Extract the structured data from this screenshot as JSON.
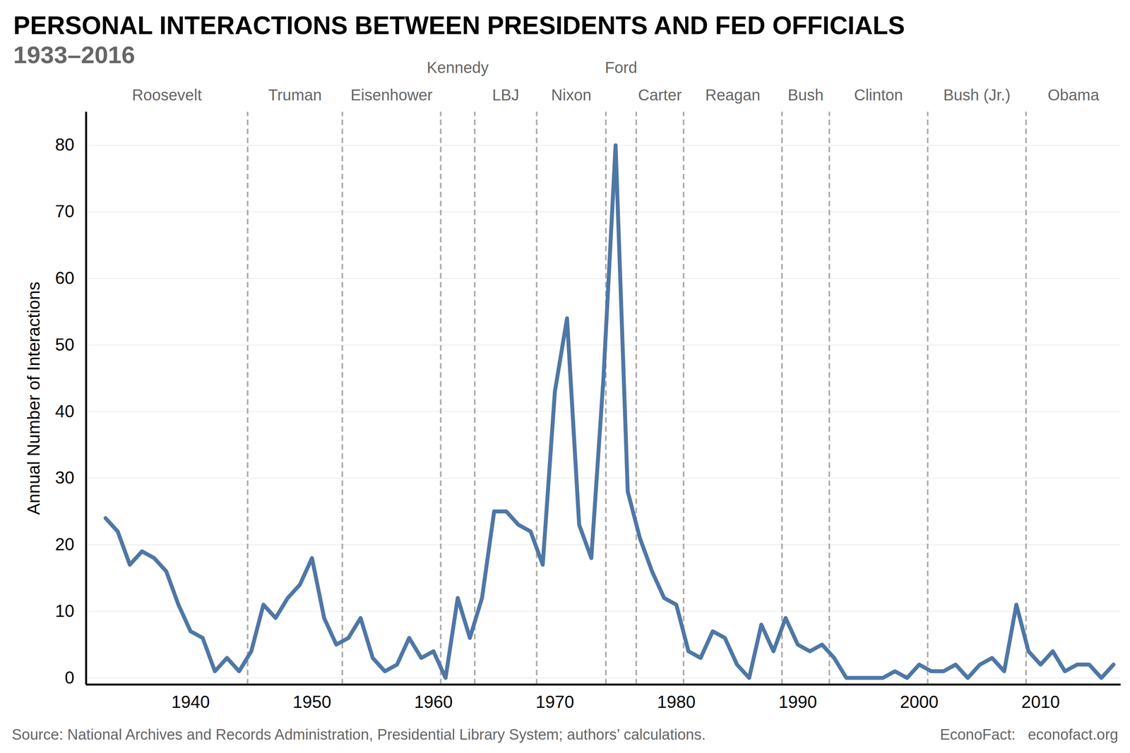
{
  "chart_data": {
    "type": "line",
    "title": "PERSONAL INTERACTIONS BETWEEN PRESIDENTS AND FED OFFICIALS",
    "subtitle": "1933–2016",
    "y_label": "Annual Number of Interactions",
    "source": "Source: National Archives and Records Administration, Presidential Library System; authors’ calculations.",
    "credit": "EconoFact:   econofact.org",
    "color": "#4e77a6",
    "x": [
      1933,
      1934,
      1935,
      1936,
      1937,
      1938,
      1939,
      1940,
      1941,
      1942,
      1943,
      1944,
      1945,
      1946,
      1947,
      1948,
      1949,
      1950,
      1951,
      1952,
      1953,
      1954,
      1955,
      1956,
      1957,
      1958,
      1959,
      1960,
      1961,
      1962,
      1963,
      1964,
      1965,
      1966,
      1967,
      1968,
      1969,
      1970,
      1971,
      1972,
      1973,
      1974,
      1975,
      1976,
      1977,
      1978,
      1979,
      1980,
      1981,
      1982,
      1983,
      1984,
      1985,
      1986,
      1987,
      1988,
      1989,
      1990,
      1991,
      1992,
      1993,
      1994,
      1995,
      1996,
      1997,
      1998,
      1999,
      2000,
      2001,
      2002,
      2003,
      2004,
      2005,
      2006,
      2007,
      2008,
      2009,
      2010,
      2011,
      2012,
      2013,
      2014,
      2015,
      2016
    ],
    "values": [
      24,
      22,
      17,
      19,
      18,
      16,
      11,
      7,
      6,
      1,
      3,
      1,
      4,
      11,
      9,
      12,
      14,
      18,
      9,
      5,
      6,
      9,
      3,
      1,
      2,
      6,
      3,
      4,
      0,
      12,
      6,
      12,
      25,
      25,
      23,
      22,
      17,
      43,
      54,
      23,
      18,
      45,
      80,
      28,
      21,
      16,
      12,
      11,
      4,
      3,
      7,
      6,
      2,
      0,
      8,
      4,
      9,
      5,
      4,
      5,
      3,
      0,
      0,
      0,
      0,
      1,
      0,
      2,
      1,
      1,
      2,
      0,
      2,
      3,
      1,
      11,
      4,
      2,
      4,
      1,
      2,
      2,
      0,
      2
    ],
    "xlim": [
      1931.4,
      2016.6
    ],
    "ylim": [
      -1,
      85
    ],
    "xticks": [
      1940,
      1950,
      1960,
      1970,
      1980,
      1990,
      2000,
      2010
    ],
    "yticks": [
      0,
      10,
      20,
      30,
      40,
      50,
      60,
      70,
      80
    ],
    "grid": true,
    "presidents": [
      "Roosevelt",
      "Truman",
      "Eisenhower",
      "Kennedy",
      "LBJ",
      "Nixon",
      "Ford",
      "Carter",
      "Reagan",
      "Bush",
      "Clinton",
      "Bush (Jr.)",
      "Obama"
    ],
    "term_boundaries": [
      1944.7,
      1952.5,
      1960.6,
      1963.4,
      1968.5,
      1974.2,
      1976.7,
      1980.6,
      1988.7,
      1992.6,
      2000.7,
      2008.8
    ]
  }
}
